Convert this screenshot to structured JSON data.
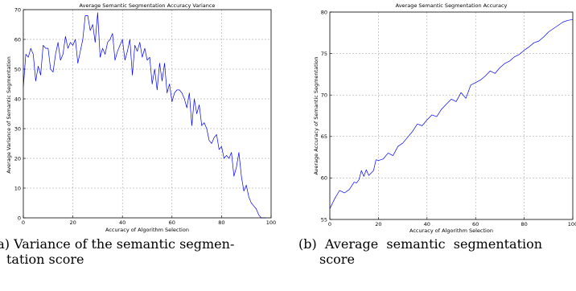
{
  "chart_data": [
    {
      "type": "line",
      "title": "Average Semantic Segmentation Accuracy Variance",
      "xlabel": "Accuracy of Algorithm Selection",
      "ylabel": "Average Variance of Semantic Segmentation",
      "xlim": [
        0,
        100
      ],
      "ylim": [
        0,
        70
      ],
      "xticks": [
        0,
        20,
        40,
        60,
        80,
        100
      ],
      "yticks": [
        0,
        10,
        20,
        30,
        40,
        50,
        60,
        70
      ],
      "grid": true,
      "line_color": "#0000ff",
      "x": [
        0,
        1,
        2,
        3,
        4,
        5,
        6,
        7,
        8,
        9,
        10,
        11,
        12,
        13,
        14,
        15,
        16,
        17,
        18,
        19,
        20,
        21,
        22,
        23,
        24,
        25,
        26,
        27,
        28,
        29,
        30,
        31,
        32,
        33,
        34,
        35,
        36,
        37,
        38,
        39,
        40,
        41,
        42,
        43,
        44,
        45,
        46,
        47,
        48,
        49,
        50,
        51,
        52,
        53,
        54,
        55,
        56,
        57,
        58,
        59,
        60,
        61,
        62,
        63,
        64,
        65,
        66,
        67,
        68,
        69,
        70,
        71,
        72,
        73,
        74,
        75,
        76,
        77,
        78,
        79,
        80,
        81,
        82,
        83,
        84,
        85,
        86,
        87,
        88,
        89,
        90,
        91,
        92,
        93,
        94,
        95,
        96,
        97,
        98
      ],
      "y": [
        44,
        55,
        54,
        57,
        55,
        46,
        51,
        48,
        58,
        57,
        57,
        50,
        49,
        55,
        59,
        53,
        55,
        61,
        57,
        59,
        58,
        60,
        52,
        56,
        60,
        68,
        68,
        63,
        65,
        59,
        69,
        54,
        57,
        55,
        59,
        60,
        62,
        53,
        56,
        58,
        60,
        53,
        56,
        60,
        48,
        58,
        56,
        59,
        54,
        57,
        53,
        54,
        45,
        50,
        43,
        52,
        46,
        52,
        42,
        45,
        39,
        42,
        43,
        43,
        42,
        40,
        37,
        42,
        31,
        40,
        35,
        38,
        31,
        32,
        30,
        26,
        25,
        27,
        28,
        23,
        24,
        20,
        21,
        20,
        22,
        14,
        17,
        22,
        14,
        9,
        11,
        7,
        5,
        4,
        3,
        1,
        0,
        0,
        0
      ]
    },
    {
      "type": "line",
      "title": "Average Semantic Segmentation Accuracy",
      "xlabel": "Accuracy of Algorithm Selection",
      "ylabel": "Average Accuracy of Semantic Segmentation",
      "xlim": [
        0,
        100
      ],
      "ylim": [
        55,
        80
      ],
      "xticks": [
        0,
        20,
        40,
        60,
        80,
        100
      ],
      "yticks": [
        55,
        60,
        65,
        70,
        75,
        80
      ],
      "grid": true,
      "line_color": "#0000ff",
      "x": [
        0,
        2,
        4,
        6,
        8,
        10,
        11,
        12,
        13,
        14,
        15,
        16,
        17,
        18,
        19,
        20,
        22,
        24,
        26,
        28,
        30,
        32,
        34,
        36,
        38,
        40,
        42,
        44,
        46,
        48,
        50,
        52,
        54,
        56,
        58,
        60,
        62,
        64,
        66,
        68,
        70,
        72,
        74,
        76,
        78,
        80,
        82,
        84,
        86,
        88,
        90,
        92,
        94,
        96,
        98,
        100
      ],
      "y": [
        56.3,
        57.5,
        58.5,
        58.2,
        58.6,
        59.5,
        59.4,
        59.8,
        60.9,
        60.2,
        61.0,
        60.3,
        60.6,
        60.9,
        62.2,
        62.1,
        62.3,
        63.0,
        62.7,
        63.8,
        64.2,
        64.9,
        65.6,
        66.5,
        66.3,
        67.0,
        67.6,
        67.4,
        68.3,
        68.9,
        69.5,
        69.2,
        70.3,
        69.6,
        71.2,
        71.5,
        71.8,
        72.3,
        72.9,
        72.6,
        73.3,
        73.8,
        74.1,
        74.6,
        74.9,
        75.4,
        75.8,
        76.3,
        76.5,
        77.0,
        77.6,
        78.0,
        78.4,
        78.8,
        79.0,
        79.1
      ]
    }
  ],
  "captions": {
    "a": {
      "line1": "(a) Variance of the semantic segmen-",
      "line2": "tation score"
    },
    "b": {
      "line1": "(b)  Average  semantic  segmentation",
      "line2": "score"
    }
  }
}
